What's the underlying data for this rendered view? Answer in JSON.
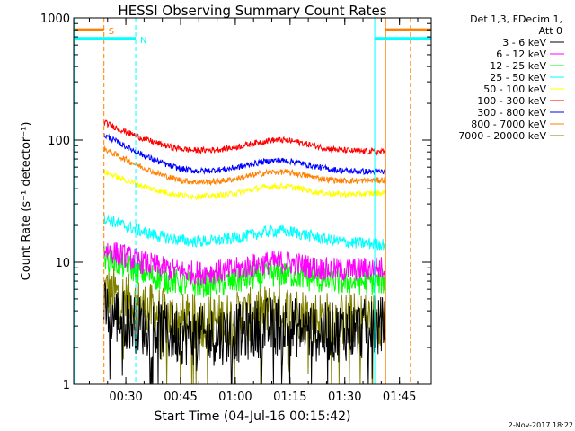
{
  "chart_data": {
    "type": "line",
    "title": "HESSI Observing Summary Count Rates",
    "xlabel": "Start Time (04-Jul-16 00:15:42)",
    "ylabel": "Count Rate (s⁻¹ detector⁻¹)",
    "yscale": "log",
    "ylim": [
      1,
      1000
    ],
    "xlim_minutes_since_start_label": [
      0,
      98
    ],
    "xtick_labels": [
      "00:30",
      "00:45",
      "01:00",
      "01:15",
      "01:30",
      "01:45"
    ],
    "xtick_minutes": [
      14.3,
      29.3,
      44.3,
      59.3,
      74.3,
      89.3
    ],
    "ytick_labels": [
      "1",
      "10",
      "100",
      "1000"
    ],
    "ytick_values": [
      1,
      10,
      100,
      1000
    ],
    "legend_header": [
      "Det 1,3, FDecim 1,",
      "Att 0"
    ],
    "legend_position": "right",
    "flags": [
      {
        "label": "S",
        "color": "#ff8000",
        "level": 800,
        "intervals": [
          [
            0,
            8.3
          ],
          [
            85.5,
            98
          ]
        ],
        "boundaries": [
          8.3,
          85.5,
          92.3
        ]
      },
      {
        "label": "N",
        "color": "#00ffff",
        "level": 680,
        "intervals": [
          [
            0,
            17
          ],
          [
            82.5,
            98
          ]
        ],
        "boundaries": [
          17,
          82.5
        ]
      }
    ],
    "data_interval_minutes": [
      8.3,
      85.5
    ],
    "series": [
      {
        "name": "3 - 6 keV",
        "color": "#000000",
        "values_summary": {
          "start": 4,
          "mid": 3,
          "end": 3
        }
      },
      {
        "name": "6 - 12 keV",
        "color": "#ff00ff",
        "values_summary": {
          "start": 13,
          "mid": 10,
          "end": 9
        }
      },
      {
        "name": "12 - 25 keV",
        "color": "#00ff00",
        "values_summary": {
          "start": 11,
          "mid": 8,
          "end": 7
        }
      },
      {
        "name": "25 - 50 keV",
        "color": "#00ffff",
        "values_summary": {
          "start": 23,
          "mid": 18,
          "end": 14
        }
      },
      {
        "name": "50 - 100 keV",
        "color": "#ffff00",
        "values_summary": {
          "start": 55,
          "mid": 42,
          "end": 37
        }
      },
      {
        "name": "100 - 300 keV",
        "color": "#ff0000",
        "values_summary": {
          "start": 140,
          "mid": 100,
          "end": 80
        }
      },
      {
        "name": "300 - 800 keV",
        "color": "#0000ff",
        "values_summary": {
          "start": 110,
          "mid": 68,
          "end": 55
        }
      },
      {
        "name": "800 - 7000 keV",
        "color": "#ff8000",
        "values_summary": {
          "start": 85,
          "mid": 55,
          "end": 47
        }
      },
      {
        "name": "7000 - 20000 keV",
        "color": "#808000",
        "values_summary": {
          "start": 6,
          "mid": 4,
          "end": 3.5
        }
      }
    ],
    "footer_date": "2-Nov-2017 18:22"
  }
}
